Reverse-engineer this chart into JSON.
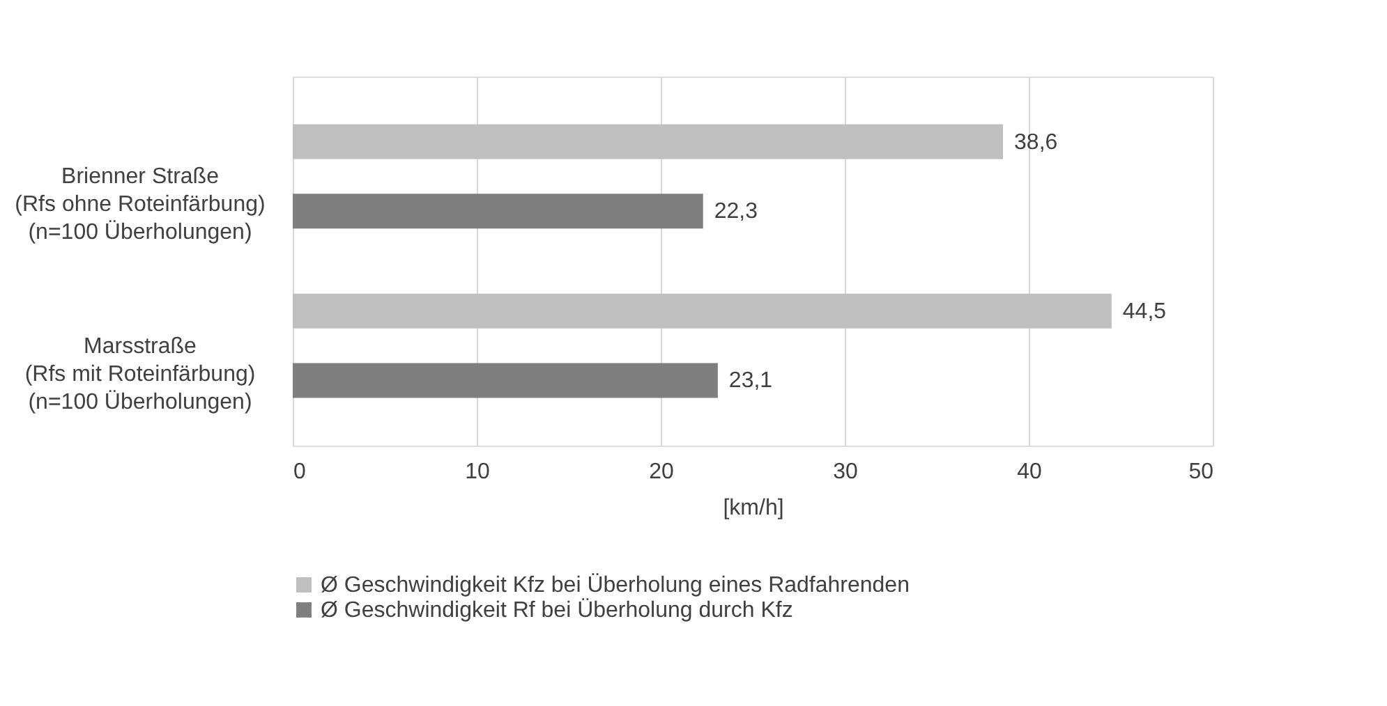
{
  "chart_data": {
    "type": "bar",
    "orientation": "horizontal",
    "categories": [
      "Brienner Straße\n(Rfs ohne Roteinfärbung)\n(n=100 Überholungen)",
      "Marsstraße\n(Rfs mit Roteinfärbung)\n(n=100 Überholungen)"
    ],
    "series": [
      {
        "name": "Ø Geschwindigkeit Kfz bei Überholung eines Radfahrenden",
        "color": "#bfbfbf",
        "values": [
          38.6,
          44.5
        ]
      },
      {
        "name": "Ø Geschwindigkeit Rf bei Überholung durch Kfz",
        "color": "#7f7f7f",
        "values": [
          22.3,
          23.1
        ]
      }
    ],
    "xlabel": "[km/h]",
    "xlim": [
      0,
      50
    ],
    "xticks": [
      0,
      10,
      20,
      30,
      40,
      50
    ],
    "grid": "x",
    "legend": "bottom",
    "value_labels": [
      [
        "38,6",
        "44,5"
      ],
      [
        "22,3",
        "23,1"
      ]
    ]
  }
}
